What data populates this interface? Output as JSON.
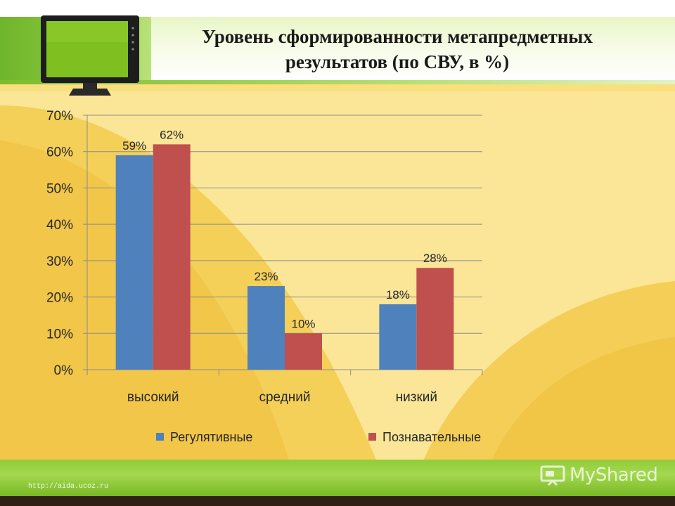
{
  "slide": {
    "title_line1": "Уровень сформированности метапредметных",
    "title_line2": "результатов (по СВУ, в %)",
    "footer_url": "http://aida.ucoz.ru",
    "watermark": "MyShared"
  },
  "colors": {
    "series_1": "#4f81bd",
    "series_2": "#c0504d",
    "gridline": "#8c8c8c",
    "text": "#262626"
  },
  "chart_data": {
    "type": "bar",
    "categories": [
      "высокий",
      "средний",
      "низкий"
    ],
    "series": [
      {
        "name": "Регулятивные",
        "values": [
          59,
          23,
          18
        ],
        "labels": [
          "59%",
          "23%",
          "18%"
        ]
      },
      {
        "name": "Познавательные",
        "values": [
          62,
          10,
          28
        ],
        "labels": [
          "62%",
          "10%",
          "28%"
        ]
      }
    ],
    "y_ticks": [
      "0%",
      "10%",
      "20%",
      "30%",
      "40%",
      "50%",
      "60%",
      "70%"
    ],
    "ylim": [
      0,
      70
    ],
    "grid": true,
    "legend_position": "bottom",
    "title": "",
    "xlabel": "",
    "ylabel": ""
  }
}
